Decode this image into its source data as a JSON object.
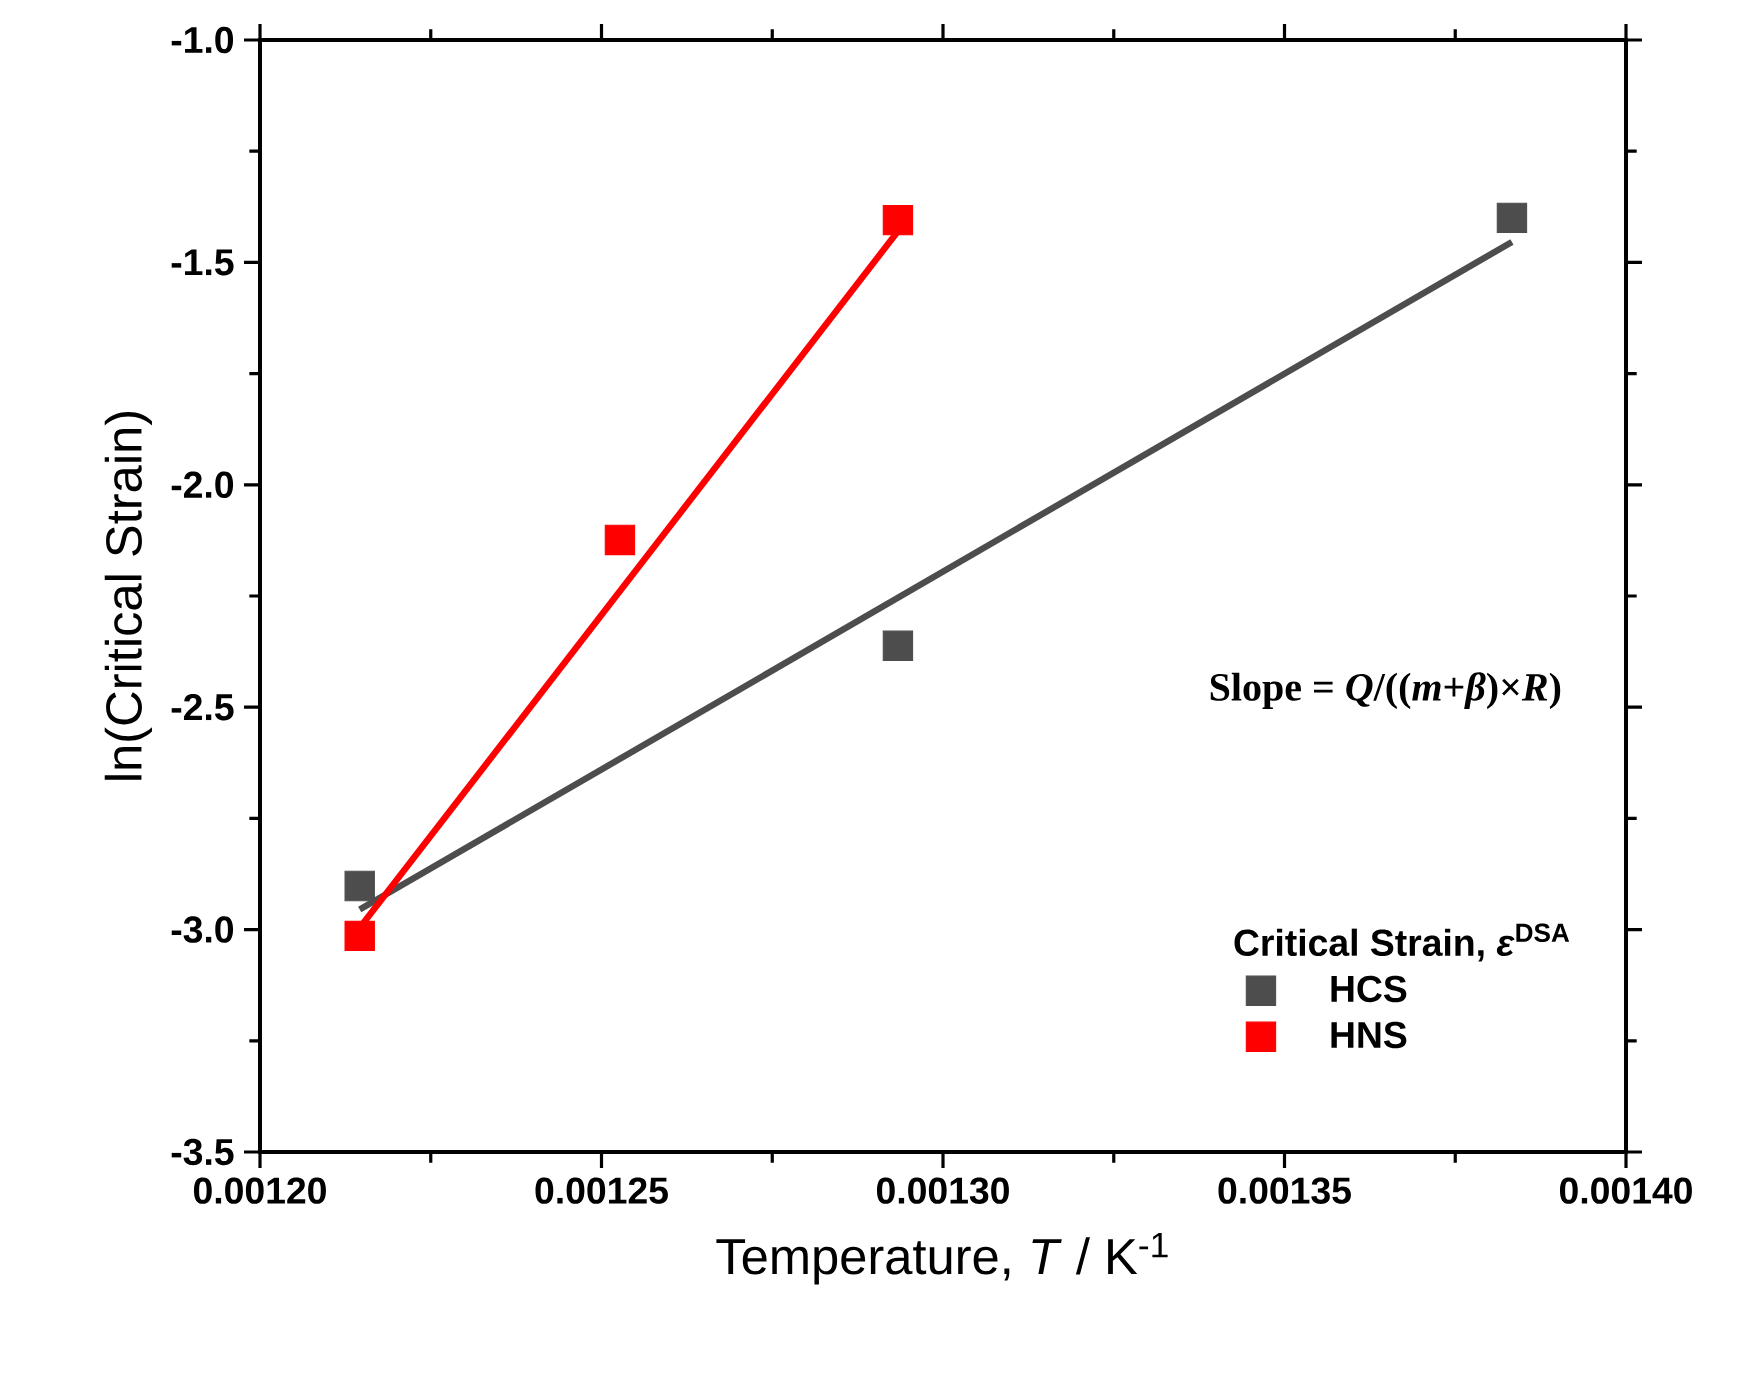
{
  "chart_data": {
    "type": "scatter",
    "xlabel": "Temperature, *T* / K$^{-1}$",
    "ylabel": "ln(Critical Strain)",
    "legend_title": "Critical Strain, *ε*$^{DSA}$",
    "annotations": [
      "Slope = *Q*/((*m*+*β*)×*R*)"
    ],
    "xlim": [
      0.0012,
      0.0014
    ],
    "ylim": [
      -3.5,
      -1.0
    ],
    "xticks": [
      {
        "value": 0.0012,
        "label": "0.00120"
      },
      {
        "value": 0.00125,
        "label": "0.00125"
      },
      {
        "value": 0.0013,
        "label": "0.00130"
      },
      {
        "value": 0.00135,
        "label": "0.00135"
      },
      {
        "value": 0.0014,
        "label": "0.00140"
      }
    ],
    "yticks": [
      {
        "value": -3.5,
        "label": "-3.5"
      },
      {
        "value": -3.0,
        "label": "-3.0"
      },
      {
        "value": -2.5,
        "label": "-2.5"
      },
      {
        "value": -2.0,
        "label": "-2.0"
      },
      {
        "value": -1.5,
        "label": "-1.5"
      },
      {
        "value": -1.0,
        "label": "-1.0"
      }
    ],
    "legend": "bottom right",
    "series": [
      {
        "name": "HCS",
        "marker": "square",
        "color": "#4d4d4d",
        "x": [
          0.0012146,
          0.0012934,
          0.0013833
        ],
        "values": [
          -2.902,
          -2.362,
          -1.4
        ]
      },
      {
        "name": "HNS",
        "marker": "square",
        "color": "#ff0000",
        "x": [
          0.0012146,
          0.0012527,
          0.0012934
        ],
        "values": [
          -3.014,
          -2.124,
          -1.405
        ]
      },
      {
        "type": "line",
        "marker": "none",
        "color": "#4d4d4d",
        "x": [
          0.0012146,
          0.0013833
        ],
        "values": [
          -2.955,
          -1.454
        ]
      },
      {
        "type": "line",
        "marker": "none",
        "color": "#ff0000",
        "x": [
          0.0012146,
          0.0012934
        ],
        "values": [
          -2.996,
          -1.43
        ]
      }
    ]
  }
}
